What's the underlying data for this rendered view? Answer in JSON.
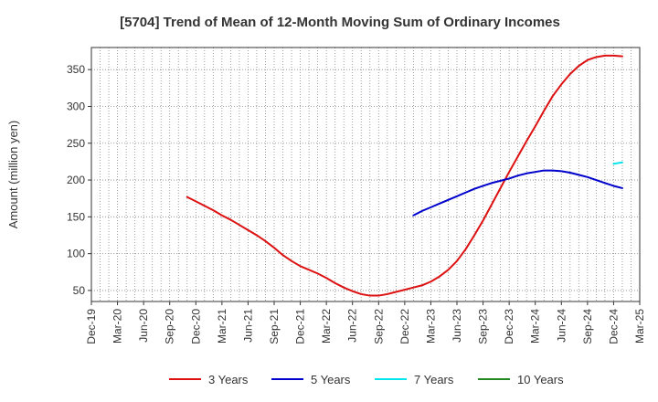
{
  "chart_data": {
    "type": "line",
    "title": "[5704]  Trend of Mean of 12-Month Moving Sum of Ordinary Incomes",
    "ylabel": "Amount (million yen)",
    "xlabel": "",
    "ylim": [
      35,
      380
    ],
    "yticks": [
      50,
      100,
      150,
      200,
      250,
      300,
      350
    ],
    "categories": [
      "Dec-19",
      "Mar-20",
      "Jun-20",
      "Sep-20",
      "Dec-20",
      "Mar-21",
      "Jun-21",
      "Sep-21",
      "Dec-21",
      "Mar-22",
      "Jun-22",
      "Sep-22",
      "Dec-22",
      "Mar-23",
      "Jun-23",
      "Sep-23",
      "Dec-23",
      "Mar-24",
      "Jun-24",
      "Sep-24",
      "Dec-24",
      "Mar-25"
    ],
    "series": [
      {
        "name": "3 Years",
        "color": "#dd1111",
        "points": [
          [
            11,
            177
          ],
          [
            12,
            171
          ],
          [
            13,
            165
          ],
          [
            14,
            159
          ],
          [
            15,
            152
          ],
          [
            16,
            146
          ],
          [
            17,
            139
          ],
          [
            18,
            132
          ],
          [
            19,
            125
          ],
          [
            20,
            117
          ],
          [
            21,
            108
          ],
          [
            22,
            98
          ],
          [
            23,
            90
          ],
          [
            24,
            83
          ],
          [
            25,
            78
          ],
          [
            26,
            73
          ],
          [
            27,
            67
          ],
          [
            28,
            60
          ],
          [
            29,
            54
          ],
          [
            30,
            49
          ],
          [
            31,
            45
          ],
          [
            32,
            43
          ],
          [
            33,
            43
          ],
          [
            34,
            45
          ],
          [
            35,
            48
          ],
          [
            36,
            51
          ],
          [
            37,
            54
          ],
          [
            38,
            57
          ],
          [
            39,
            62
          ],
          [
            40,
            69
          ],
          [
            41,
            78
          ],
          [
            42,
            90
          ],
          [
            43,
            106
          ],
          [
            44,
            125
          ],
          [
            45,
            145
          ],
          [
            46,
            167
          ],
          [
            47,
            189
          ],
          [
            48,
            211
          ],
          [
            49,
            232
          ],
          [
            50,
            253
          ],
          [
            51,
            273
          ],
          [
            52,
            294
          ],
          [
            53,
            314
          ],
          [
            54,
            330
          ],
          [
            55,
            344
          ],
          [
            56,
            355
          ],
          [
            57,
            363
          ],
          [
            58,
            367
          ],
          [
            59,
            369
          ],
          [
            60,
            369
          ],
          [
            61,
            368
          ]
        ]
      },
      {
        "name": "5 Years",
        "color": "#0000cc",
        "points": [
          [
            37,
            152
          ],
          [
            38,
            158
          ],
          [
            39,
            163
          ],
          [
            40,
            168
          ],
          [
            41,
            173
          ],
          [
            42,
            178
          ],
          [
            43,
            183
          ],
          [
            44,
            188
          ],
          [
            45,
            192
          ],
          [
            46,
            196
          ],
          [
            47,
            199
          ],
          [
            48,
            202
          ],
          [
            49,
            206
          ],
          [
            50,
            209
          ],
          [
            51,
            211
          ],
          [
            52,
            213
          ],
          [
            53,
            213
          ],
          [
            54,
            212
          ],
          [
            55,
            210
          ],
          [
            56,
            207
          ],
          [
            57,
            204
          ],
          [
            58,
            200
          ],
          [
            59,
            196
          ],
          [
            60,
            192
          ],
          [
            61,
            189
          ]
        ]
      },
      {
        "name": "7 Years",
        "color": "#00e5ee",
        "points": [
          [
            60,
            222
          ],
          [
            61,
            224
          ]
        ]
      },
      {
        "name": "10 Years",
        "color": "#228822",
        "points": []
      }
    ]
  }
}
